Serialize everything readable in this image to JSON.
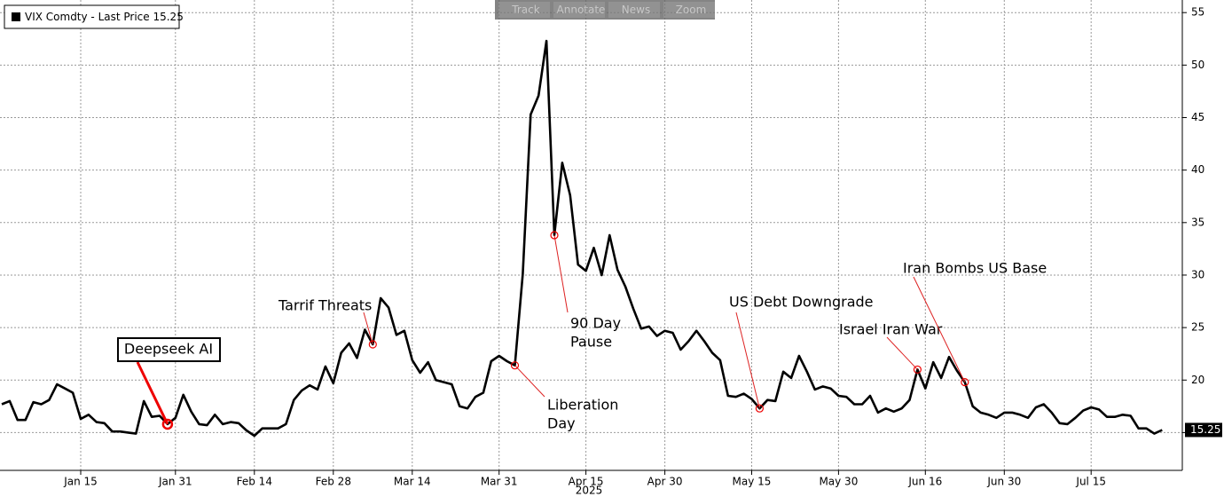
{
  "toolbar": [
    "Track",
    "Annotate",
    "News",
    "Zoom"
  ],
  "chart_data": {
    "type": "line",
    "xlabel": "2025",
    "categories": [
      null,
      null,
      null,
      null,
      null,
      null,
      null,
      null,
      null,
      null,
      "Jan 15",
      null,
      null,
      null,
      null,
      null,
      null,
      null,
      null,
      null,
      null,
      null,
      "Jan 31",
      null,
      null,
      null,
      null,
      null,
      null,
      null,
      null,
      null,
      "Feb 14",
      null,
      null,
      null,
      null,
      null,
      null,
      null,
      null,
      null,
      "Feb 28",
      null,
      null,
      null,
      null,
      null,
      null,
      null,
      null,
      null,
      "Mar 14",
      null,
      null,
      null,
      null,
      null,
      null,
      null,
      null,
      null,
      null,
      "Mar 31",
      null,
      null,
      null,
      null,
      null,
      null,
      null,
      null,
      null,
      null,
      "Apr 15",
      null,
      null,
      null,
      null,
      null,
      null,
      null,
      null,
      null,
      "Apr 30",
      null,
      null,
      null,
      null,
      null,
      null,
      null,
      null,
      null,
      null,
      "May 15",
      null,
      null,
      null,
      null,
      null,
      null,
      null,
      null,
      null,
      null,
      "May 30",
      null,
      null,
      null,
      null,
      null,
      null,
      null,
      null,
      null,
      null,
      "Jun 16",
      null,
      null,
      null,
      null,
      null,
      null,
      null,
      null,
      null,
      "Jun 30",
      null,
      null,
      null,
      null,
      null,
      null,
      null,
      null,
      null,
      null,
      "Jul 15",
      null,
      null,
      null,
      null,
      null,
      null,
      null,
      null,
      null
    ],
    "series": [
      {
        "name": "VIX Comdty - Last Price 15.25",
        "color": "#000000",
        "values": [
          17.7,
          18.0,
          16.2,
          16.2,
          17.9,
          17.7,
          18.1,
          19.6,
          19.2,
          18.8,
          16.3,
          16.7,
          16.0,
          15.9,
          15.1,
          15.1,
          15.0,
          14.9,
          18.0,
          16.5,
          16.6,
          15.8,
          16.4,
          18.6,
          17.0,
          15.8,
          15.7,
          16.7,
          15.8,
          16.0,
          15.9,
          15.2,
          14.7,
          15.4,
          15.4,
          15.4,
          15.8,
          18.1,
          19.0,
          19.5,
          19.1,
          21.3,
          19.7,
          22.6,
          23.5,
          22.1,
          24.8,
          23.4,
          27.8,
          26.9,
          24.3,
          24.7,
          21.9,
          20.7,
          21.7,
          20.0,
          19.8,
          19.6,
          17.5,
          17.3,
          18.4,
          18.8,
          21.8,
          22.3,
          21.8,
          21.4,
          30.1,
          45.3,
          47.1,
          52.3,
          33.8,
          40.7,
          37.6,
          31.0,
          30.4,
          32.6,
          30.0,
          33.8,
          30.5,
          28.9,
          26.8,
          24.9,
          25.1,
          24.2,
          24.7,
          24.5,
          22.9,
          23.7,
          24.7,
          23.7,
          22.6,
          21.9,
          18.5,
          18.4,
          18.7,
          18.2,
          17.3,
          18.1,
          18.0,
          20.8,
          20.2,
          22.3,
          20.8,
          19.1,
          19.4,
          19.2,
          18.5,
          18.4,
          17.7,
          17.7,
          18.5,
          16.9,
          17.3,
          17.0,
          17.3,
          18.1,
          21.0,
          19.2,
          21.7,
          20.2,
          22.2,
          20.9,
          19.8,
          17.5,
          16.9,
          16.7,
          16.4,
          16.9,
          16.9,
          16.7,
          16.4,
          17.4,
          17.7,
          16.9,
          15.9,
          15.8,
          16.4,
          17.1,
          17.4,
          17.2,
          16.5,
          16.5,
          16.7,
          16.6,
          15.4,
          15.4,
          14.9,
          15.25
        ]
      }
    ],
    "ylim": [
      11.4,
      56.2
    ],
    "yticks": [
      15,
      20,
      25,
      30,
      35,
      40,
      45,
      50,
      55
    ],
    "grid": true,
    "legend": "top-left",
    "annotations": [
      {
        "text": [
          "Deepseek AI"
        ],
        "index": 21
      },
      {
        "text": [
          "Tarrif Threats"
        ],
        "index": 47
      },
      {
        "text": [
          "Liberation",
          "Day"
        ],
        "index": 65
      },
      {
        "text": [
          "90 Day",
          "Pause"
        ],
        "index": 70
      },
      {
        "text": [
          "US Debt Downgrade"
        ],
        "index": 96
      },
      {
        "text": [
          "Israel Iran War"
        ],
        "index": 116
      },
      {
        "text": [
          "Iran Bombs US Base"
        ],
        "index": 122
      }
    ]
  }
}
